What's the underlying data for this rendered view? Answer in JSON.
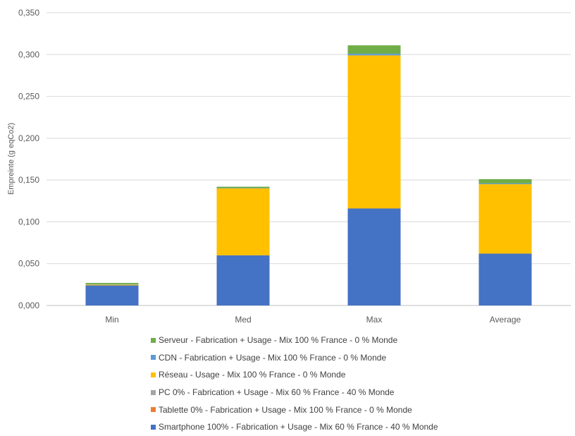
{
  "chart_data": {
    "type": "stacked-bar",
    "categories": [
      "Min",
      "Med",
      "Max",
      "Average"
    ],
    "ylabel": "Empreinte (g eqCo2)",
    "ylim": [
      0,
      0.35
    ],
    "yticks": [
      "0,000",
      "0,050",
      "0,100",
      "0,150",
      "0,200",
      "0,250",
      "0,300",
      "0,350"
    ],
    "grid": true,
    "legend_position": "bottom",
    "series": [
      {
        "name": "Smartphone 100% - Fabrication + Usage - Mix 60 % France - 40 % Monde",
        "color": "#4472C4",
        "values": [
          0.024,
          0.06,
          0.116,
          0.062
        ]
      },
      {
        "name": "Tablette 0% - Fabrication + Usage - Mix 100 % France - 0 % Monde",
        "color": "#ED7D31",
        "values": [
          0,
          0,
          0,
          0
        ]
      },
      {
        "name": "PC 0% - Fabrication + Usage - Mix 60 % France - 40 % Monde",
        "color": "#A5A5A5",
        "values": [
          0,
          0,
          0,
          0
        ]
      },
      {
        "name": "Réseau - Usage - Mix 100 % France - 0 % Monde",
        "color": "#FFC000",
        "values": [
          0.001,
          0.08,
          0.183,
          0.083
        ]
      },
      {
        "name": "CDN - Fabrication + Usage - Mix 100 % France - 0 % Monde",
        "color": "#5B9BD5",
        "values": [
          0.0005,
          0.0005,
          0.002,
          0.001
        ]
      },
      {
        "name": "Serveur - Fabrication + Usage - Mix 100 % France - 0 % Monde",
        "color": "#70AD47",
        "values": [
          0.0015,
          0.0015,
          0.01,
          0.005
        ]
      }
    ]
  }
}
